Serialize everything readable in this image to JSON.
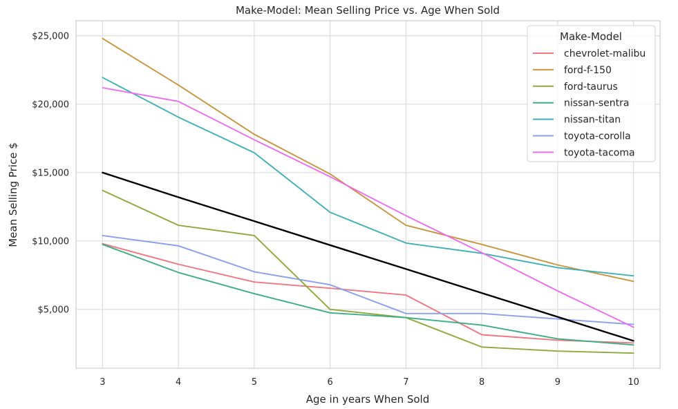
{
  "chart_data": {
    "type": "line",
    "title": "Make-Model: Mean Selling Price vs. Age When Sold",
    "xlabel": "Age in years When Sold",
    "ylabel": "Mean Selling Price $",
    "x": [
      3,
      4,
      5,
      6,
      7,
      8,
      9,
      10
    ],
    "x_ticks": [
      3,
      4,
      5,
      6,
      7,
      8,
      9,
      10
    ],
    "xlim": [
      2.65,
      10.35
    ],
    "ylim": [
      700,
      26100
    ],
    "y_ticks": [
      5000,
      10000,
      15000,
      20000,
      25000
    ],
    "y_tick_labels": [
      "$5,000",
      "$10,000",
      "$15,000",
      "$20,000",
      "$25,000"
    ],
    "grid": true,
    "legend": {
      "title": "Make-Model",
      "placement": "top-right"
    },
    "series": [
      {
        "name": "chevrolet-malibu",
        "color": "#f27681",
        "values": [
          9800,
          8300,
          7000,
          6550,
          6050,
          3150,
          2750,
          2550
        ]
      },
      {
        "name": "ford-f-150",
        "color": "#c9943a",
        "values": [
          24800,
          21400,
          17800,
          14900,
          11150,
          9750,
          8250,
          7050
        ]
      },
      {
        "name": "ford-taurus",
        "color": "#8ea93a",
        "values": [
          13700,
          11150,
          10400,
          5000,
          4400,
          2250,
          1950,
          1800
        ]
      },
      {
        "name": "nissan-sentra",
        "color": "#3bae85",
        "values": [
          9750,
          7700,
          6150,
          4750,
          4400,
          3850,
          2850,
          2400
        ]
      },
      {
        "name": "nissan-titan",
        "color": "#3fb0b8",
        "values": [
          21950,
          19050,
          16450,
          12100,
          9850,
          9100,
          8050,
          7450
        ]
      },
      {
        "name": "toyota-corolla",
        "color": "#8a9ff0",
        "values": [
          10400,
          9650,
          7750,
          6800,
          4700,
          4700,
          4300,
          3900
        ]
      },
      {
        "name": "toyota-tacoma",
        "color": "#ee6bf0",
        "values": [
          21200,
          20200,
          17400,
          14700,
          11850,
          9150,
          6350,
          3700
        ]
      },
      {
        "color": "#000000",
        "values": [
          15000,
          13200,
          11450,
          9700,
          7950,
          6200,
          4450,
          2700
        ]
      }
    ]
  }
}
